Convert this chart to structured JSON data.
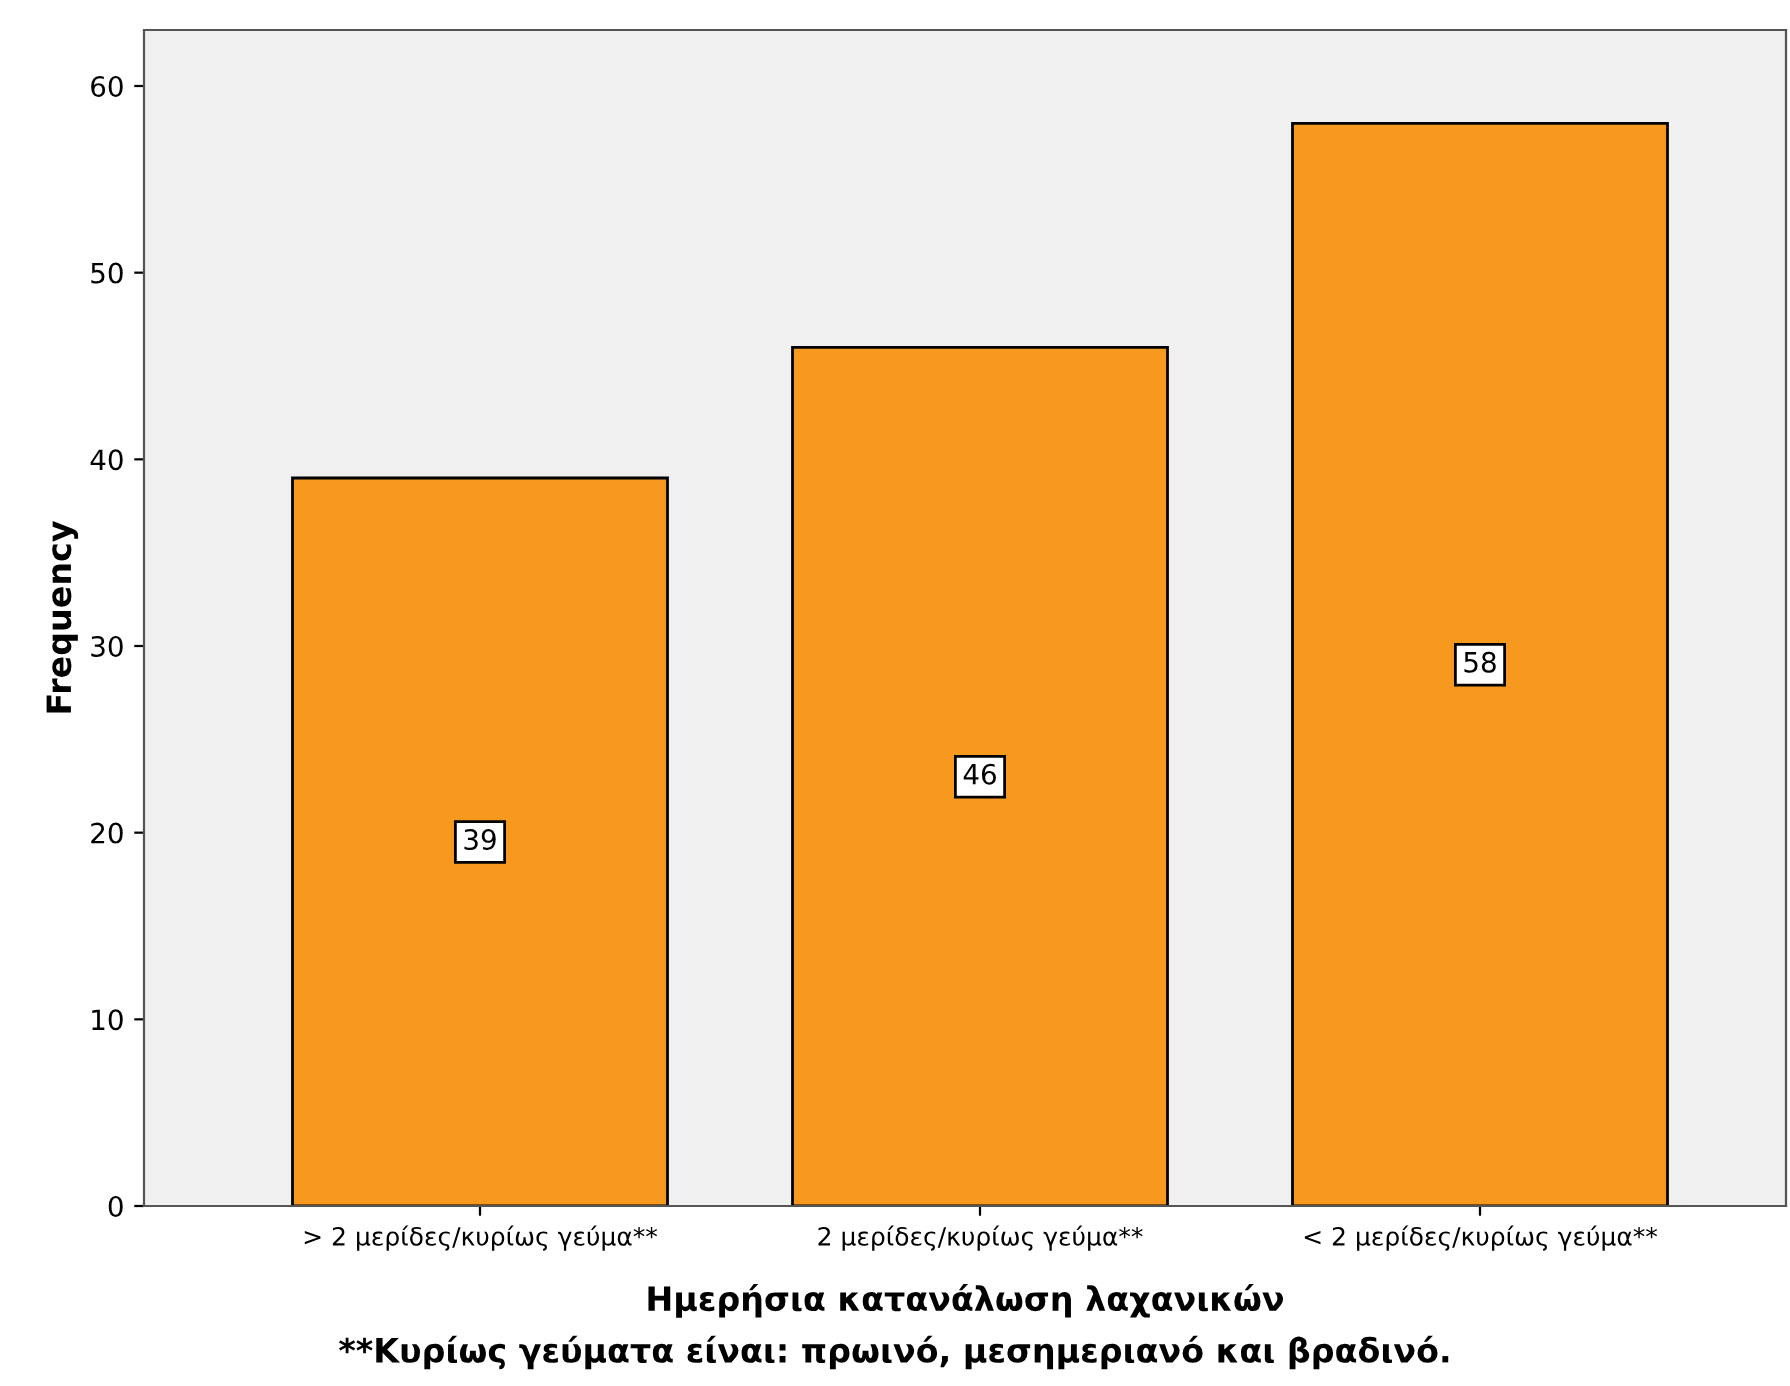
{
  "chart_data": {
    "type": "bar",
    "categories": [
      "> 2 μερίδες/κυρίως γεύμα**",
      "2 μερίδες/κυρίως γεύμα**",
      "< 2 μερίδες/κυρίως γεύμα**"
    ],
    "values": [
      39,
      46,
      58
    ],
    "color": "#f7991f",
    "xlabel": "Ημερήσια κατανάλωση λαχανικών",
    "ylabel": "Frequency",
    "annotations": [
      "**Κυρίως γεύματα είναι: πρωινό, μεσημεριανό και βραδινό."
    ],
    "ylim": [
      0,
      63
    ],
    "yticks": [
      0,
      10,
      20,
      30,
      40,
      50,
      60
    ],
    "data_labels": true,
    "grid": false,
    "legend": false
  }
}
